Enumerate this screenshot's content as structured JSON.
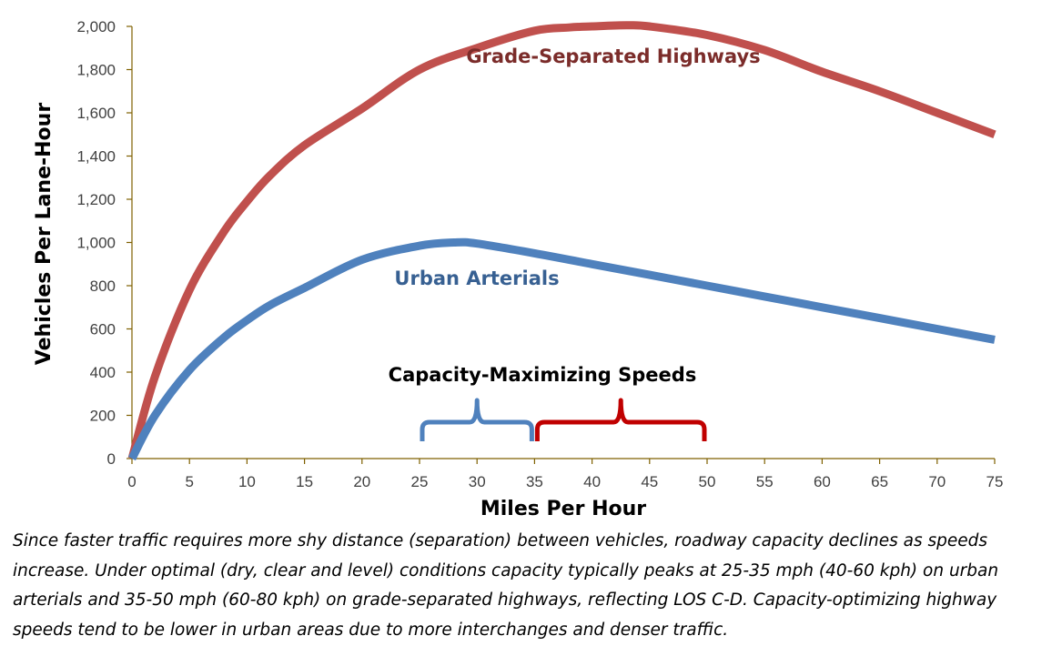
{
  "chart_data": {
    "type": "line",
    "xlabel": "Miles Per Hour",
    "ylabel": "Vehicles Per Lane-Hour",
    "xlim": [
      0,
      75
    ],
    "ylim": [
      0,
      2000
    ],
    "x_ticks": [
      "0",
      "5",
      "10",
      "15",
      "20",
      "25",
      "30",
      "35",
      "40",
      "45",
      "50",
      "55",
      "60",
      "65",
      "70",
      "75"
    ],
    "y_ticks": [
      "0",
      "200",
      "400",
      "600",
      "800",
      "1,000",
      "1,200",
      "1,400",
      "1,600",
      "1,800",
      "2,000"
    ],
    "grid": false,
    "series": [
      {
        "name": "Grade-Separated Highways",
        "color": "#c0504d",
        "x": [
          0,
          2,
          5,
          8,
          10,
          12,
          15,
          20,
          25,
          30,
          35,
          38,
          40,
          43,
          45,
          50,
          55,
          60,
          65,
          70,
          75
        ],
        "y": [
          0,
          380,
          780,
          1050,
          1190,
          1310,
          1450,
          1620,
          1800,
          1900,
          1980,
          1995,
          2000,
          2005,
          2000,
          1960,
          1890,
          1790,
          1700,
          1600,
          1500
        ]
      },
      {
        "name": "Urban Arterials",
        "color": "#4f81bd",
        "x": [
          0,
          2,
          5,
          8,
          10,
          12,
          15,
          20,
          25,
          28,
          30,
          35,
          40,
          45,
          50,
          55,
          60,
          65,
          70,
          75
        ],
        "y": [
          0,
          200,
          410,
          560,
          640,
          710,
          790,
          920,
          985,
          1000,
          995,
          950,
          900,
          850,
          800,
          750,
          700,
          650,
          600,
          550
        ]
      }
    ],
    "annotations": [
      {
        "text": "Capacity-Maximizing Speeds"
      }
    ],
    "brackets": [
      {
        "color": "#4f81bd",
        "x_from": 25,
        "x_to": 35
      },
      {
        "color": "#c00000",
        "x_from": 35,
        "x_to": 50
      }
    ]
  },
  "caption": "Since faster traffic requires more shy distance (separation) between vehicles, roadway capacity declines as speeds increase. Under optimal (dry, clear and level) conditions capacity typically peaks at 25-35 mph (40-60 kph) on urban arterials and 35-50 mph (60-80 kph) on grade-separated highways, reflecting LOS C-D. Capacity-optimizing highway speeds tend to be lower in urban areas due to more interchanges and denser traffic."
}
